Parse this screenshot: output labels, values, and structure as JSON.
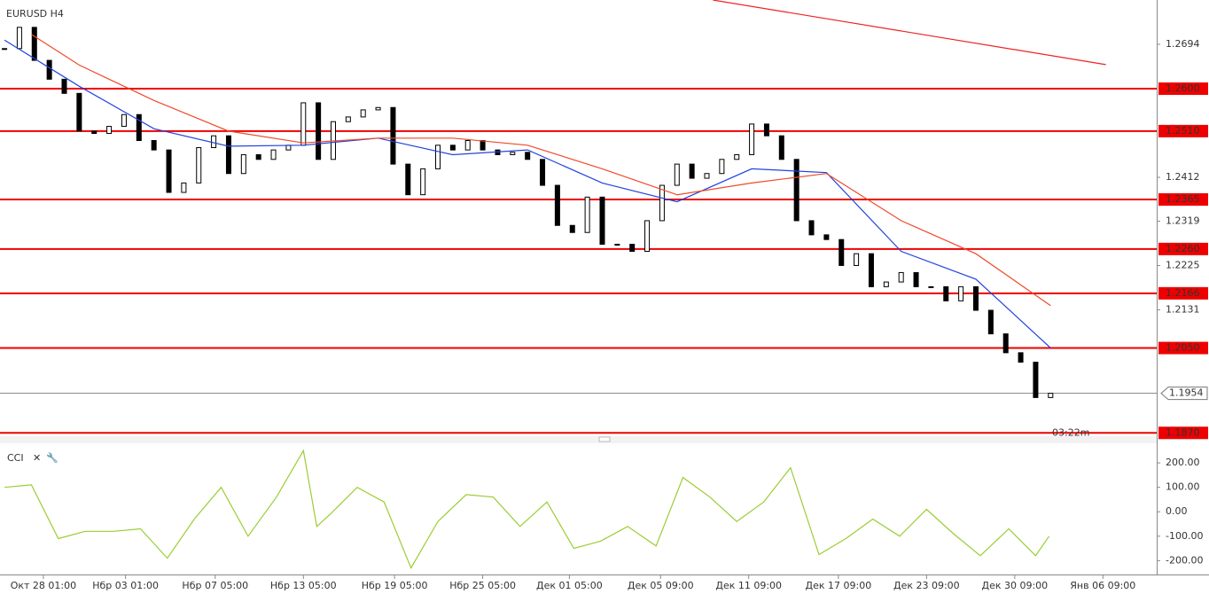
{
  "chart_data": [
    {
      "type": "candlestick",
      "title": "EURUSD H4",
      "closes": [
        1.2685,
        1.273,
        1.266,
        1.262,
        1.259,
        1.251,
        1.2505,
        1.252,
        1.2545,
        1.249,
        1.247,
        1.238,
        1.24,
        1.2475,
        1.25,
        1.242,
        1.246,
        1.245,
        1.247,
        1.248,
        1.257,
        1.245,
        1.253,
        1.254,
        1.2555,
        1.256,
        1.244,
        1.2375,
        1.243,
        1.248,
        1.247,
        1.249,
        1.247,
        1.246,
        1.2465,
        1.245,
        1.2395,
        1.231,
        1.2295,
        1.237,
        1.227,
        1.227,
        1.2255,
        1.232,
        1.2395,
        1.244,
        1.241,
        1.242,
        1.245,
        1.246,
        1.2525,
        1.25,
        1.245,
        1.232,
        1.229,
        1.228,
        1.2225,
        1.225,
        1.218,
        1.219,
        1.221,
        1.218,
        1.218,
        1.215,
        1.218,
        1.213,
        1.208,
        1.204,
        1.202,
        1.1945,
        1.1954
      ],
      "xlim": [
        -0.3,
        77.1
      ],
      "xticks": [
        {
          "value": 2.6,
          "label": "Окт 28 01:00"
        },
        {
          "value": 8.1,
          "label": "Нбр 03 01:00"
        },
        {
          "value": 14.1,
          "label": "Нбр 07 05:00"
        },
        {
          "value": 20.0,
          "label": "Нбр 13 05:00"
        },
        {
          "value": 26.1,
          "label": "Нбр 19 05:00"
        },
        {
          "value": 32.0,
          "label": "Нбр 25 05:00"
        },
        {
          "value": 37.8,
          "label": "Дек 01 05:00"
        },
        {
          "value": 43.9,
          "label": "Дек 05 09:00"
        },
        {
          "value": 49.8,
          "label": "Дек 11 09:00"
        },
        {
          "value": 55.8,
          "label": "Дек 17 09:00"
        },
        {
          "value": 61.7,
          "label": "Дек 23 09:00"
        },
        {
          "value": 67.6,
          "label": "Дек 30 09:00"
        },
        {
          "value": 73.5,
          "label": "Янв 06 09:00"
        }
      ],
      "ylim": [
        1.1863,
        1.2788
      ],
      "yticks": [
        1.2694,
        1.2412,
        1.2319,
        1.2225,
        1.2131
      ],
      "levels": [
        {
          "value": 1.26,
          "label": "1.2600"
        },
        {
          "value": 1.251,
          "label": "1.2510"
        },
        {
          "value": 1.2365,
          "label": "1.2365"
        },
        {
          "value": 1.226,
          "label": "1.2260"
        },
        {
          "value": 1.2166,
          "label": "1.2166"
        },
        {
          "value": 1.205,
          "label": "1.2050"
        },
        {
          "value": 1.187,
          "label": "1.1870"
        }
      ],
      "level_color": "#ee0000",
      "current_price": 1.1954,
      "countdown": "03:22m",
      "series": [
        {
          "color": "#2244dd",
          "x": [
            0,
            5,
            10,
            15,
            20,
            25,
            30,
            35,
            40,
            45,
            50,
            55,
            60,
            65,
            70
          ],
          "values": [
            1.2703,
            1.2605,
            1.2515,
            1.2478,
            1.248,
            1.2495,
            1.246,
            1.247,
            1.24,
            1.236,
            1.243,
            1.2422,
            1.2255,
            1.2196,
            1.205
          ]
        },
        {
          "color": "#f04a2a",
          "x": [
            1.8,
            5,
            10,
            15,
            20,
            25,
            30,
            35,
            40,
            45,
            50,
            55,
            60,
            65,
            70
          ],
          "values": [
            1.2715,
            1.265,
            1.2575,
            1.251,
            1.2485,
            1.2495,
            1.2495,
            1.248,
            1.243,
            1.2375,
            1.24,
            1.242,
            1.232,
            1.225,
            1.214
          ]
        }
      ],
      "trendline": {
        "color": "#ee2222",
        "x": [
          47.4,
          73.7
        ],
        "values": [
          1.2788,
          1.2651
        ]
      }
    },
    {
      "type": "line",
      "title": "CCI",
      "color": "#9acd32",
      "x": [
        0,
        1.8,
        3.6,
        5.4,
        7.3,
        9.1,
        10.9,
        12.7,
        14.5,
        16.3,
        18.2,
        20.0,
        20.9,
        21.8,
        23.6,
        25.4,
        27.2,
        29.0,
        30.9,
        32.7,
        34.5,
        36.3,
        38.1,
        39.9,
        41.7,
        43.6,
        45.4,
        47.2,
        49.0,
        50.8,
        52.6,
        54.5,
        56.3,
        58.1,
        59.9,
        61.7,
        63.5,
        65.3,
        67.2,
        69.0,
        69.9
      ],
      "values": [
        100,
        110,
        -110,
        -80,
        -80,
        -70,
        -190,
        -30,
        100,
        -100,
        60,
        250,
        -60,
        -10,
        100,
        40,
        -230,
        -40,
        70,
        60,
        -60,
        40,
        -150,
        -120,
        -60,
        -140,
        140,
        60,
        -40,
        40,
        180,
        -175,
        -110,
        -30,
        -100,
        10,
        -90,
        -180,
        -70,
        -180,
        -100
      ],
      "xlim": [
        -0.3,
        77.1
      ],
      "ylim": [
        -235,
        262
      ],
      "yticks": [
        {
          "value": 200,
          "label": "200.00"
        },
        {
          "value": 100,
          "label": "100.00"
        },
        {
          "value": 0,
          "label": "0.00"
        },
        {
          "value": -100,
          "label": "-100.00"
        },
        {
          "value": -200,
          "label": "-200.00"
        }
      ]
    }
  ]
}
